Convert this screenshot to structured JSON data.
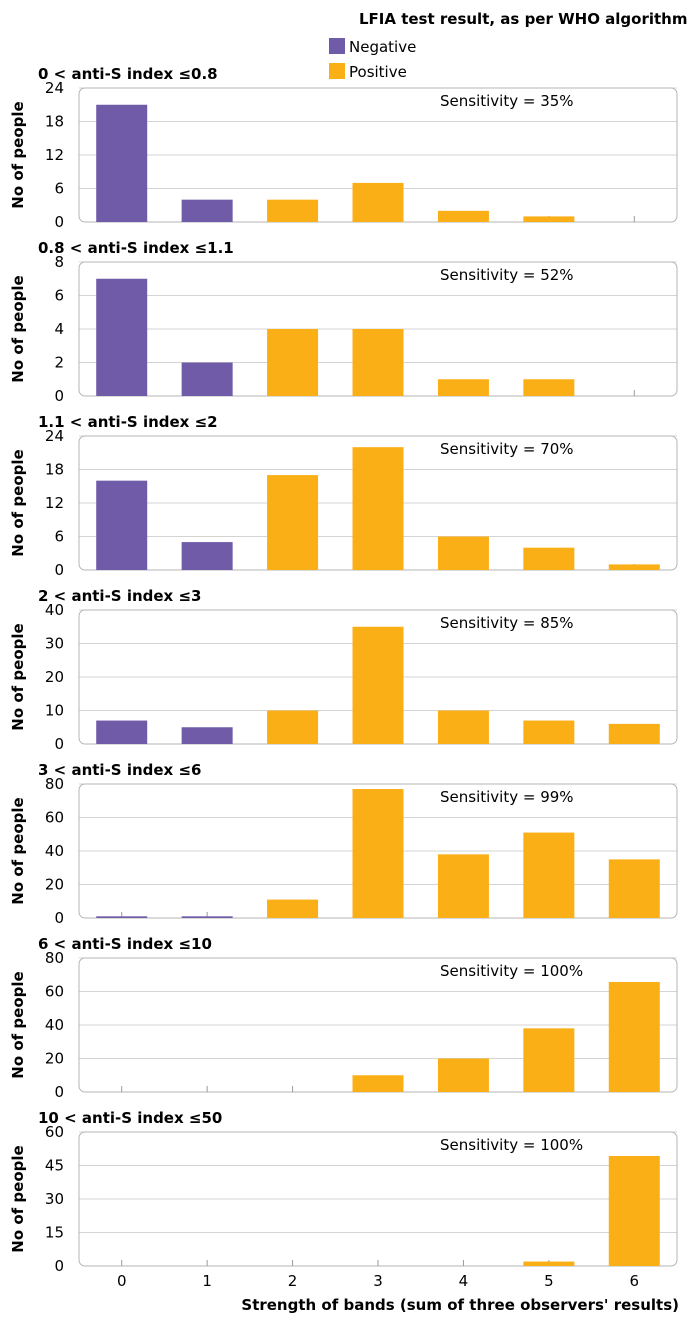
{
  "chart_data": {
    "type": "bar",
    "legend": {
      "title": "LFIA test result, as per WHO algorithm",
      "placement": "top-right",
      "items": [
        {
          "label": "Negative",
          "color": "#6f5ba7"
        },
        {
          "label": "Positive",
          "color": "#fbaf17"
        }
      ]
    },
    "categories": [
      "0",
      "1",
      "2",
      "3",
      "4",
      "5",
      "6"
    ],
    "xlabel": "Strength of bands (sum of three observers' results)",
    "ylabel": "No of people",
    "grid": true,
    "panels": [
      {
        "title": "0 < anti-S index ≤0.8",
        "annotation": "Sensitivity = 35%",
        "ylim": [
          0,
          24
        ],
        "yticks": [
          0,
          6,
          12,
          18,
          24
        ],
        "values": [
          21,
          4,
          4,
          7,
          2,
          1,
          0
        ],
        "result": [
          "Negative",
          "Negative",
          "Positive",
          "Positive",
          "Positive",
          "Positive",
          "Positive"
        ]
      },
      {
        "title": "0.8 < anti-S index ≤1.1",
        "annotation": "Sensitivity = 52%",
        "ylim": [
          0,
          8
        ],
        "yticks": [
          0,
          2,
          4,
          6,
          8
        ],
        "values": [
          7,
          2,
          4,
          4,
          1,
          1,
          0
        ],
        "result": [
          "Negative",
          "Negative",
          "Positive",
          "Positive",
          "Positive",
          "Positive",
          "Positive"
        ]
      },
      {
        "title": "1.1 < anti-S index ≤2",
        "annotation": "Sensitivity = 70%",
        "ylim": [
          0,
          24
        ],
        "yticks": [
          0,
          6,
          12,
          18,
          24
        ],
        "values": [
          16,
          5,
          17,
          22,
          6,
          4,
          1
        ],
        "result": [
          "Negative",
          "Negative",
          "Positive",
          "Positive",
          "Positive",
          "Positive",
          "Positive"
        ]
      },
      {
        "title": "2 < anti-S index ≤3",
        "annotation": "Sensitivity = 85%",
        "ylim": [
          0,
          40
        ],
        "yticks": [
          0,
          10,
          20,
          30,
          40
        ],
        "values": [
          7,
          5,
          10,
          35,
          10,
          7,
          6
        ],
        "result": [
          "Negative",
          "Negative",
          "Positive",
          "Positive",
          "Positive",
          "Positive",
          "Positive"
        ]
      },
      {
        "title": "3 < anti-S index ≤6",
        "annotation": "Sensitivity = 99%",
        "ylim": [
          0,
          80
        ],
        "yticks": [
          0,
          20,
          40,
          60,
          80
        ],
        "values": [
          1,
          1,
          11,
          77,
          38,
          51,
          35
        ],
        "result": [
          "Negative",
          "Negative",
          "Positive",
          "Positive",
          "Positive",
          "Positive",
          "Positive"
        ]
      },
      {
        "title": "6 < anti-S index ≤10",
        "annotation": "Sensitivity = 100%",
        "ylim": [
          0,
          80
        ],
        "yticks": [
          0,
          20,
          40,
          60,
          80
        ],
        "values": [
          0,
          0,
          0,
          10,
          20,
          38,
          69
        ],
        "result": [
          "Negative",
          "Negative",
          "Positive",
          "Positive",
          "Positive",
          "Positive",
          "Positive"
        ]
      },
      {
        "title": "10 < anti-S index ≤50",
        "annotation": "Sensitivity = 100%",
        "ylim": [
          0,
          60
        ],
        "yticks": [
          0,
          15,
          30,
          45,
          60
        ],
        "values": [
          0,
          0,
          0,
          0,
          0,
          2,
          50
        ],
        "result": [
          "Negative",
          "Negative",
          "Positive",
          "Positive",
          "Positive",
          "Positive",
          "Positive"
        ]
      }
    ]
  }
}
